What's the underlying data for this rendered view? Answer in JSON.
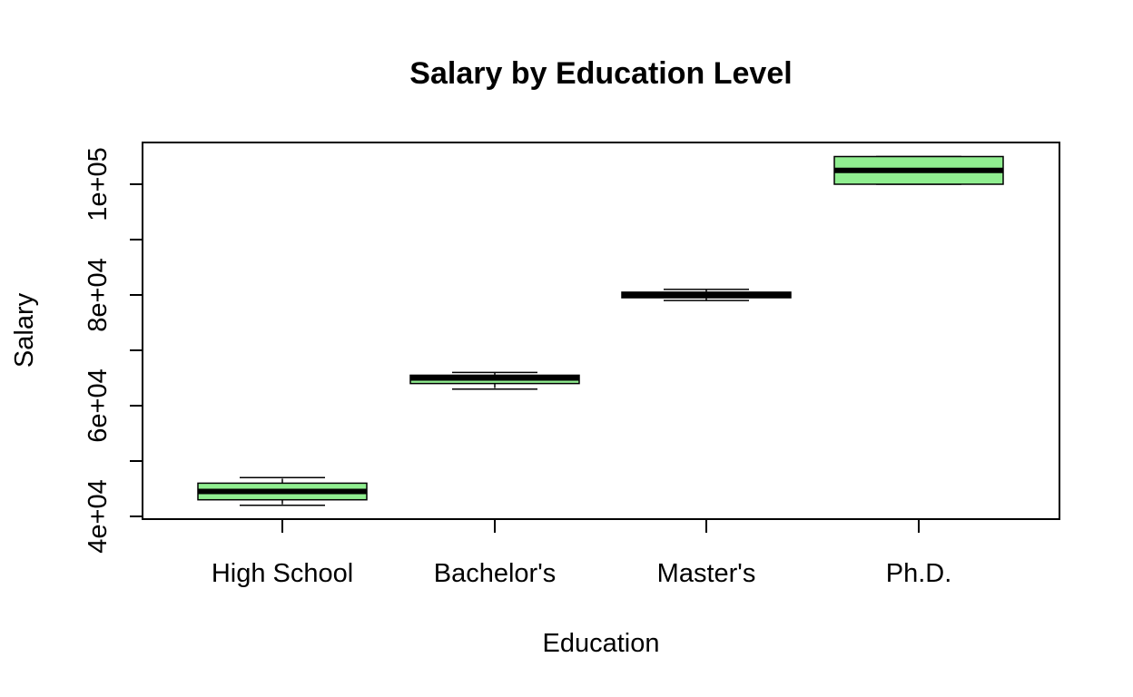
{
  "chart_data": {
    "type": "boxplot",
    "title": "Salary by Education Level",
    "xlabel": "Education",
    "ylabel": "Salary",
    "ylim": [
      40000,
      105000
    ],
    "yticks": [
      40000,
      50000,
      60000,
      70000,
      80000,
      90000,
      100000
    ],
    "ytick_labels": [
      "4e+04",
      "6e+04",
      "8e+04",
      "1e+05"
    ],
    "ytick_label_values": [
      40000,
      60000,
      80000,
      100000
    ],
    "box_color": "#90ee90",
    "grid": false,
    "categories": [
      "High School",
      "Bachelor's",
      "Master's",
      "Ph.D."
    ],
    "boxes": [
      {
        "category": "High School",
        "whisker_low": 42000,
        "q1": 43000,
        "median": 44500,
        "q3": 46000,
        "whisker_high": 47000
      },
      {
        "category": "Bachelor's",
        "whisker_low": 63000,
        "q1": 64000,
        "median": 65000,
        "q3": 65500,
        "whisker_high": 66000
      },
      {
        "category": "Master's",
        "whisker_low": 79000,
        "q1": 79500,
        "median": 80000,
        "q3": 80500,
        "whisker_high": 81000
      },
      {
        "category": "Ph.D.",
        "whisker_low": 100000,
        "q1": 100000,
        "median": 102500,
        "q3": 105000,
        "whisker_high": 105000
      }
    ]
  }
}
